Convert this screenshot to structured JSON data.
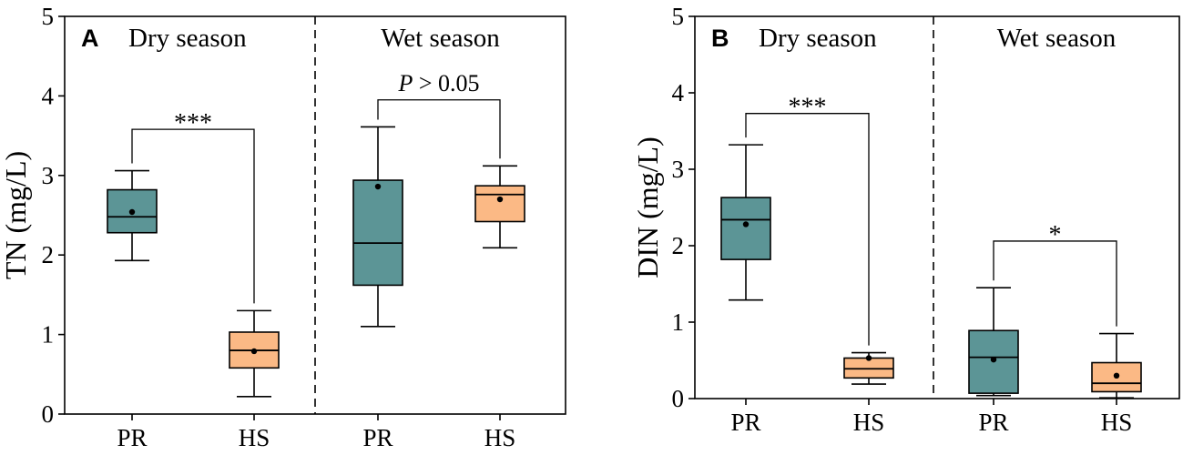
{
  "chart_data": [
    {
      "type": "box",
      "panel_label": "A",
      "ylabel": "TN (mg/L)",
      "ylim": [
        0,
        5
      ],
      "yticks": [
        "0",
        "1",
        "2",
        "3",
        "4",
        "5"
      ],
      "colors": {
        "PR": "#5c9596",
        "HS": "#fbb985"
      },
      "groups": [
        {
          "season": "Dry season",
          "boxes": [
            {
              "category": "PR",
              "min": 1.93,
              "q1": 2.28,
              "median": 2.48,
              "q3": 2.82,
              "max": 3.06,
              "mean": 2.54
            },
            {
              "category": "HS",
              "min": 0.22,
              "q1": 0.58,
              "median": 0.8,
              "q3": 1.03,
              "max": 1.3,
              "mean": 0.79
            }
          ],
          "significance": "***",
          "significance_italic": false,
          "bracket_y": 3.58
        },
        {
          "season": "Wet season",
          "boxes": [
            {
              "category": "PR",
              "min": 1.1,
              "q1": 1.62,
              "median": 2.15,
              "q3": 2.94,
              "max": 3.61,
              "mean": 2.86
            },
            {
              "category": "HS",
              "min": 2.09,
              "q1": 2.42,
              "median": 2.76,
              "q3": 2.87,
              "max": 3.12,
              "mean": 2.7
            }
          ],
          "significance_prefix": "P",
          "significance": " > 0.05",
          "significance_italic": true,
          "bracket_y": 3.95
        }
      ]
    },
    {
      "type": "box",
      "panel_label": "B",
      "ylabel": "DIN (mg/L)",
      "ylim": [
        0,
        5
      ],
      "yticks": [
        "0",
        "1",
        "2",
        "3",
        "4",
        "5"
      ],
      "colors": {
        "PR": "#5c9596",
        "HS": "#fbb985"
      },
      "groups": [
        {
          "season": "Dry season",
          "boxes": [
            {
              "category": "PR",
              "min": 1.29,
              "q1": 1.82,
              "median": 2.34,
              "q3": 2.63,
              "max": 3.32,
              "mean": 2.28
            },
            {
              "category": "HS",
              "min": 0.19,
              "q1": 0.27,
              "median": 0.39,
              "q3": 0.53,
              "max": 0.6,
              "mean": 0.53
            }
          ],
          "significance": "***",
          "significance_italic": false,
          "bracket_y": 3.73
        },
        {
          "season": "Wet season",
          "boxes": [
            {
              "category": "PR",
              "min": 0.04,
              "q1": 0.07,
              "median": 0.54,
              "q3": 0.89,
              "max": 1.45,
              "mean": 0.51
            },
            {
              "category": "HS",
              "min": 0.01,
              "q1": 0.09,
              "median": 0.2,
              "q3": 0.47,
              "max": 0.85,
              "mean": 0.3
            }
          ],
          "significance": "*",
          "significance_italic": false,
          "bracket_y": 2.06
        }
      ]
    }
  ]
}
